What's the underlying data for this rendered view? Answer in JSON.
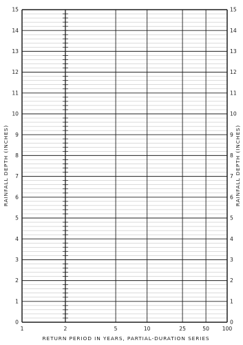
{
  "chart_data": {
    "type": "line",
    "series": [],
    "xlabel": "RETURN PERIOD IN YEARS, PARTIAL-DURATION SERIES",
    "ylabel": "RAINFALL DEPTH (INCHES)",
    "xscale": "probability",
    "xlim": [
      1,
      100
    ],
    "x_ticks": [
      1,
      2,
      5,
      10,
      25,
      50,
      100
    ],
    "x_tick_labels": [
      "1",
      "2",
      "5",
      "10",
      "25",
      "50",
      "100"
    ],
    "ylim": [
      0,
      15
    ],
    "y_ticks": [
      0,
      1,
      2,
      3,
      4,
      5,
      6,
      7,
      8,
      9,
      10,
      11,
      12,
      13,
      14,
      15
    ],
    "y_tick_labels": [
      "0",
      "1",
      "2",
      "3",
      "4",
      "5",
      "6",
      "7",
      "8",
      "9",
      "10",
      "11",
      "12",
      "13",
      "14",
      "15"
    ],
    "y_minor_step": 0.2,
    "y_labels_both_sides": true,
    "grid": true
  }
}
